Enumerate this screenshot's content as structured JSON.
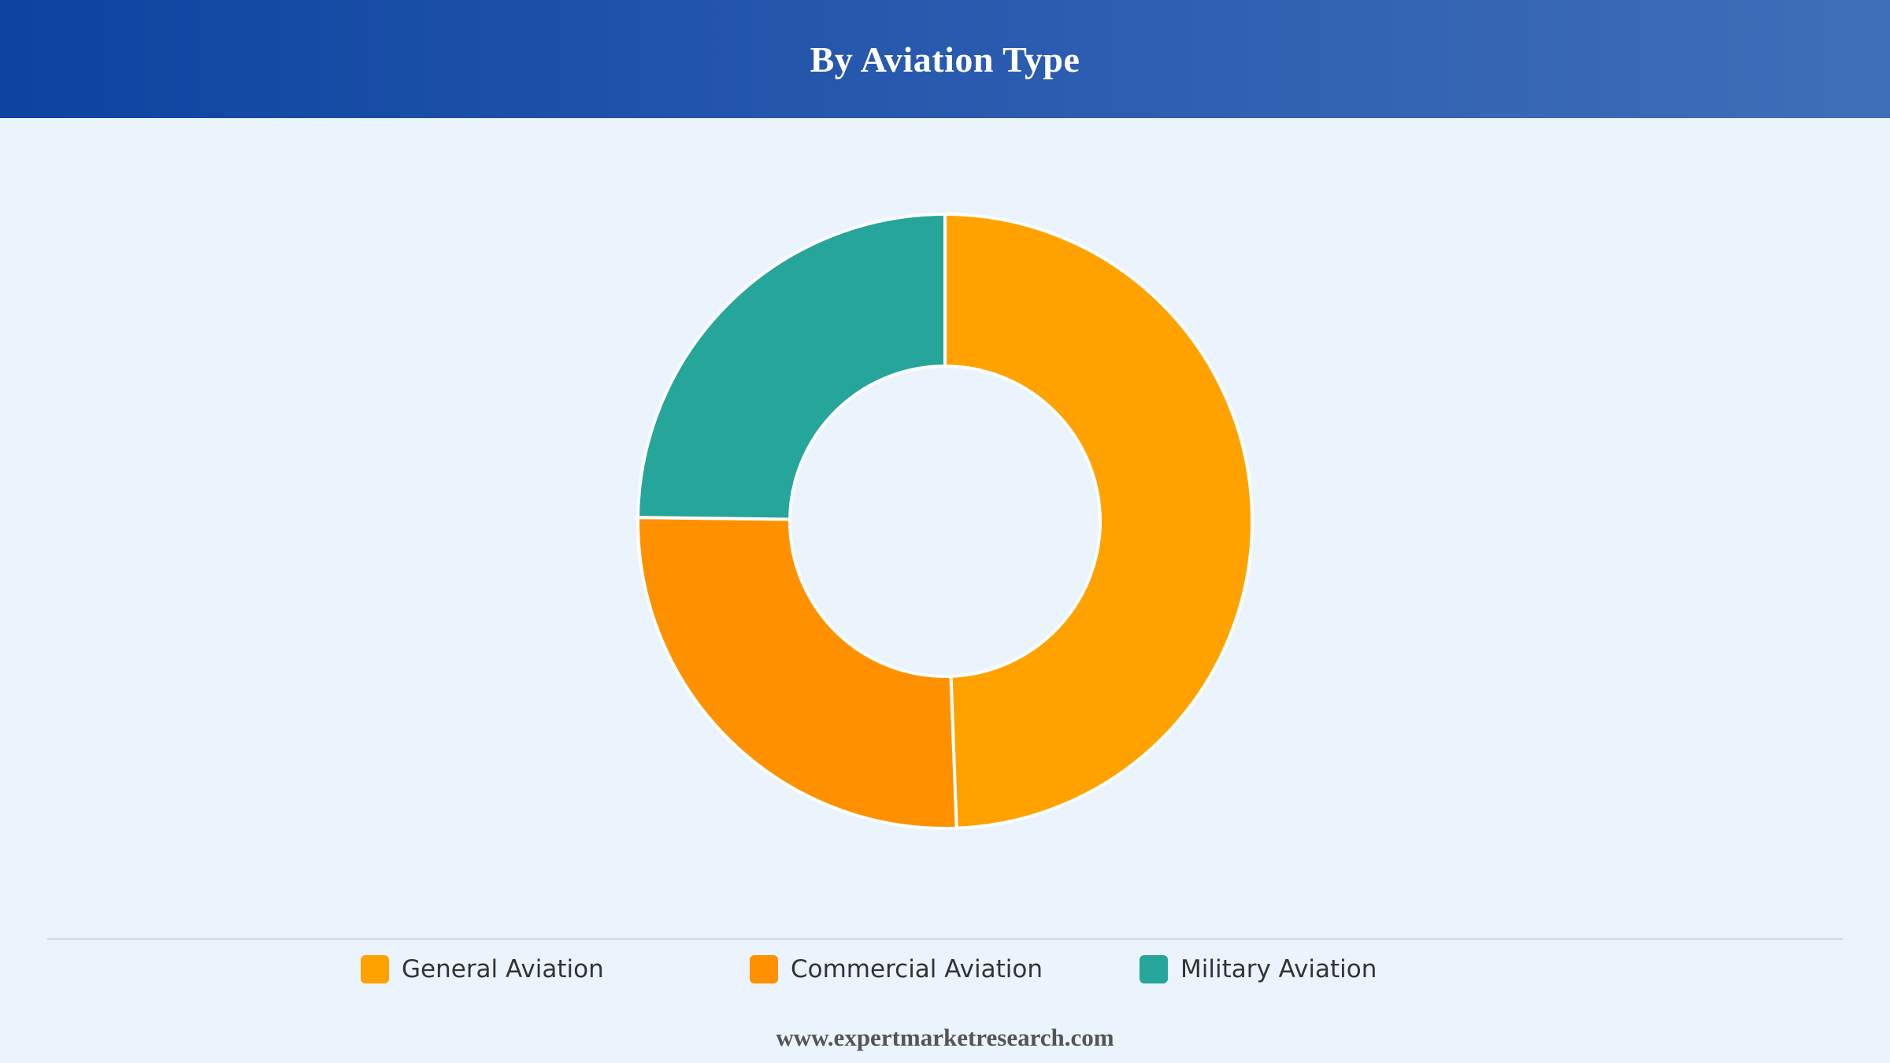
{
  "header": {
    "title": "By Aviation Type"
  },
  "chart_data": {
    "type": "pie",
    "title": "By Aviation Type",
    "donut": true,
    "categories": [
      "General Aviation",
      "Commercial Aviation",
      "Military Aviation"
    ],
    "values": [
      49.4,
      25.8,
      24.8
    ],
    "colors": [
      "#ffa200",
      "#ff9000",
      "#26a69a"
    ],
    "legend_position": "bottom",
    "start_angle": "top, clockwise"
  },
  "legend": {
    "items": [
      {
        "label": "General Aviation",
        "color": "#ffa200"
      },
      {
        "label": "Commercial Aviation",
        "color": "#ff9000"
      },
      {
        "label": "Military Aviation",
        "color": "#26a69a"
      }
    ]
  },
  "footer": {
    "source": "www.expertmarketresearch.com"
  }
}
